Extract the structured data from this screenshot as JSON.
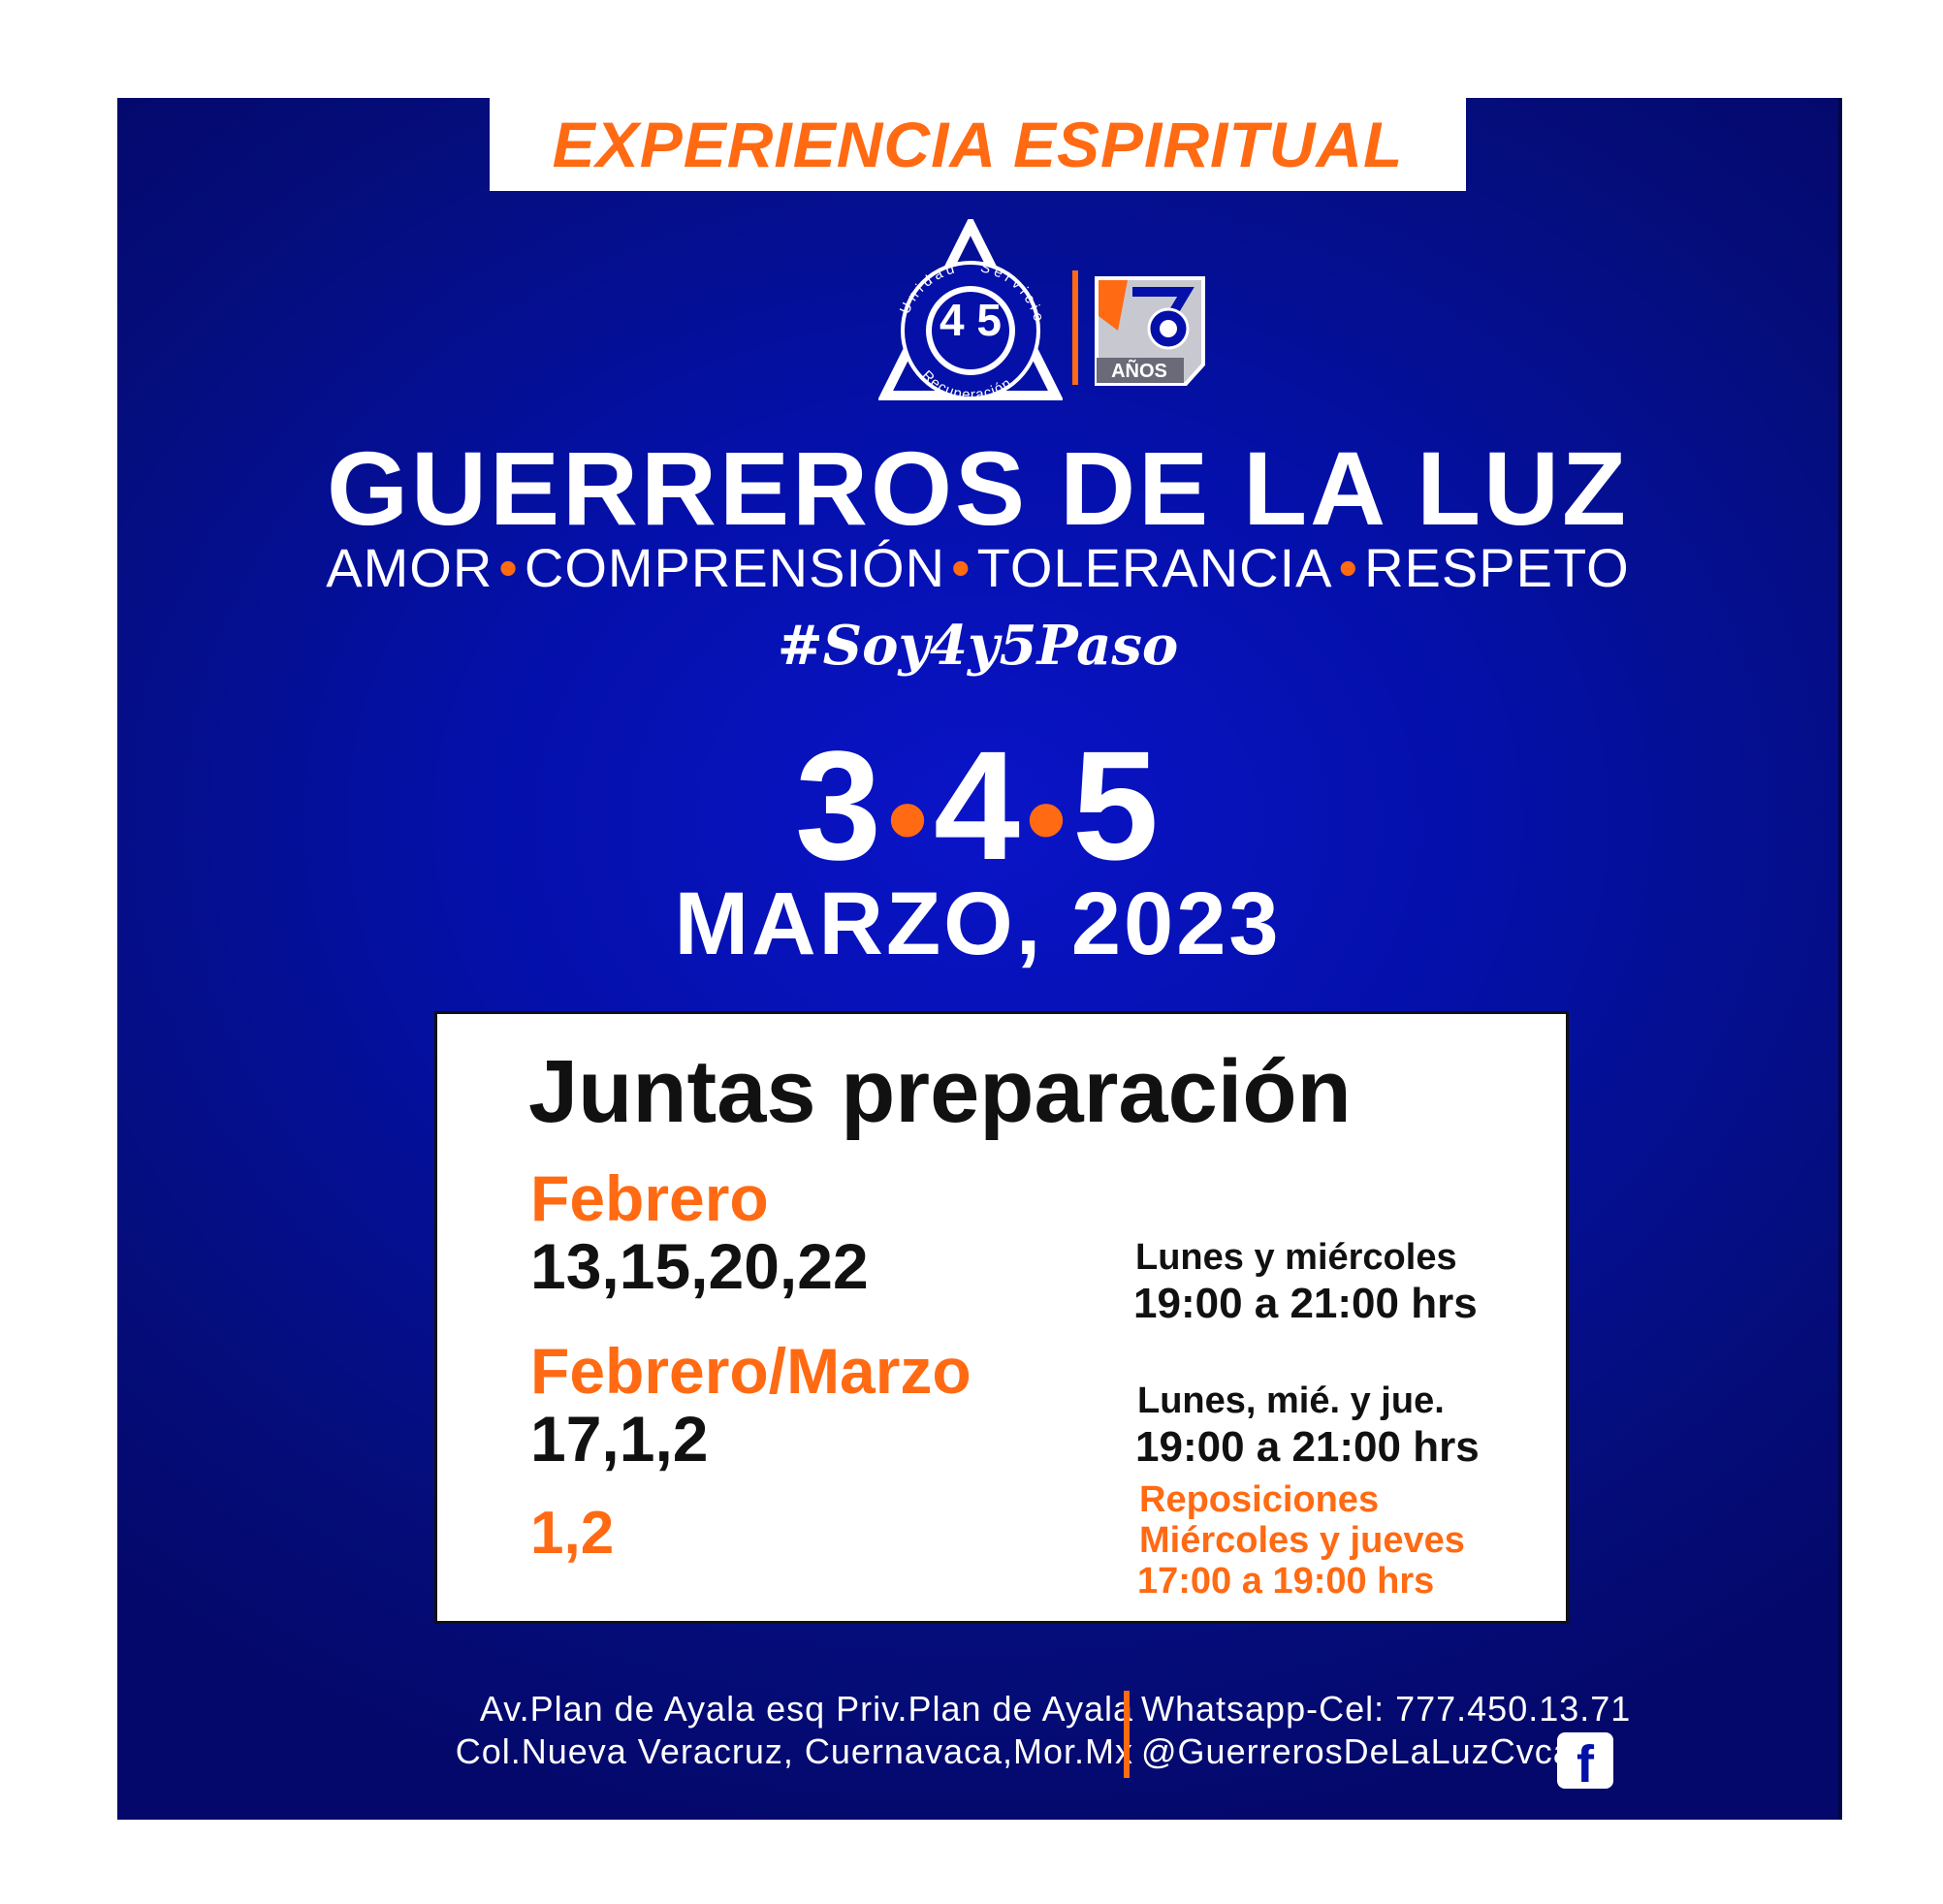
{
  "header": {
    "banner": "EXPERIENCIA ESPIRITUAL"
  },
  "logo": {
    "emblem_top": "Unidad",
    "emblem_right": "Servicio",
    "emblem_bottom": "Recuperación",
    "emblem_numbers": "4 5",
    "anniversary_label": "AÑOS"
  },
  "title": "GUERREROS DE LA LUZ",
  "values": [
    "AMOR",
    "COMPRENSIÓN",
    "TOLERANCIA",
    "RESPETO"
  ],
  "hashtag": "#Soy4y5Paso",
  "event": {
    "days": [
      "3",
      "4",
      "5"
    ],
    "month_year": "MARZO, 2023"
  },
  "card": {
    "title": "Juntas preparación",
    "rows": [
      {
        "label": "Febrero",
        "dates": "13,15,20,22",
        "days": "Lunes y miércoles",
        "hours": "19:00 a 21:00 hrs"
      },
      {
        "label": "Febrero/Marzo",
        "dates": "17,1,2",
        "days": "Lunes, mié. y jue.",
        "hours": "19:00 a 21:00 hrs"
      }
    ],
    "repos": {
      "dates": "1,2",
      "title": "Reposiciones",
      "days": "Miércoles y jueves",
      "hours": "17:00 a 19:00 hrs"
    }
  },
  "footer": {
    "address_line1": "Av.Plan de Ayala esq Priv.Plan de Ayala",
    "address_line2": "Col.Nueva Veracruz, Cuernavaca,Mor.Mx",
    "whatsapp": "Whatsapp-Cel: 777.450.13.71",
    "social": "@GuerrerosDeLaLuzCvca",
    "social_icon": "facebook-icon"
  },
  "colors": {
    "accent": "#ff6a13",
    "background": "#0410a8",
    "text": "#ffffff"
  }
}
